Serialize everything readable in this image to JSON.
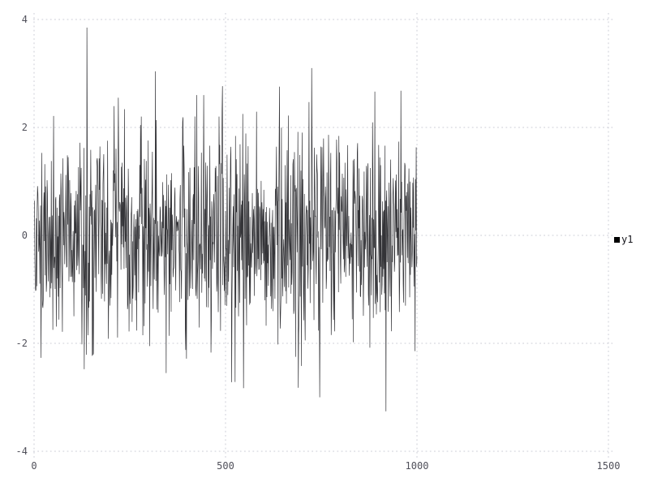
{
  "figure": {
    "background": "#ffffff",
    "grid_color": "#cbccd6",
    "tick_label_color": "#50505a",
    "legend": {
      "position": "outside-right",
      "marker": "filled-square-icon",
      "marker_color": "#000000",
      "label": "y1"
    }
  },
  "chart_data": {
    "type": "line",
    "title": "",
    "xlabel": "",
    "ylabel": "",
    "xlim": [
      0,
      1500
    ],
    "ylim": [
      -4,
      4
    ],
    "x_ticks": [
      0,
      500,
      1000,
      1500
    ],
    "y_ticks": [
      4,
      2,
      0,
      -2,
      -4
    ],
    "grid": "dotted",
    "legend_position": "outside-right",
    "series": [
      {
        "name": "y1",
        "color": "#232327",
        "line_width": 0.7,
        "n_points": 1000,
        "x_start": 1,
        "x_end": 1000,
        "distribution": "gaussian-white-noise",
        "mean": 0,
        "stddev": 0.95,
        "seed": 1337,
        "observed_min": -3.26,
        "observed_max": 3.85,
        "notable_extremes": [
          {
            "x": 138,
            "y": 3.85
          },
          {
            "x": 220,
            "y": 2.55
          },
          {
            "x": 345,
            "y": -2.55
          },
          {
            "x": 425,
            "y": 2.6
          },
          {
            "x": 547,
            "y": -2.83
          },
          {
            "x": 698,
            "y": -2.42
          },
          {
            "x": 919,
            "y": -3.26
          },
          {
            "x": 958,
            "y": 2.68
          }
        ]
      }
    ]
  }
}
